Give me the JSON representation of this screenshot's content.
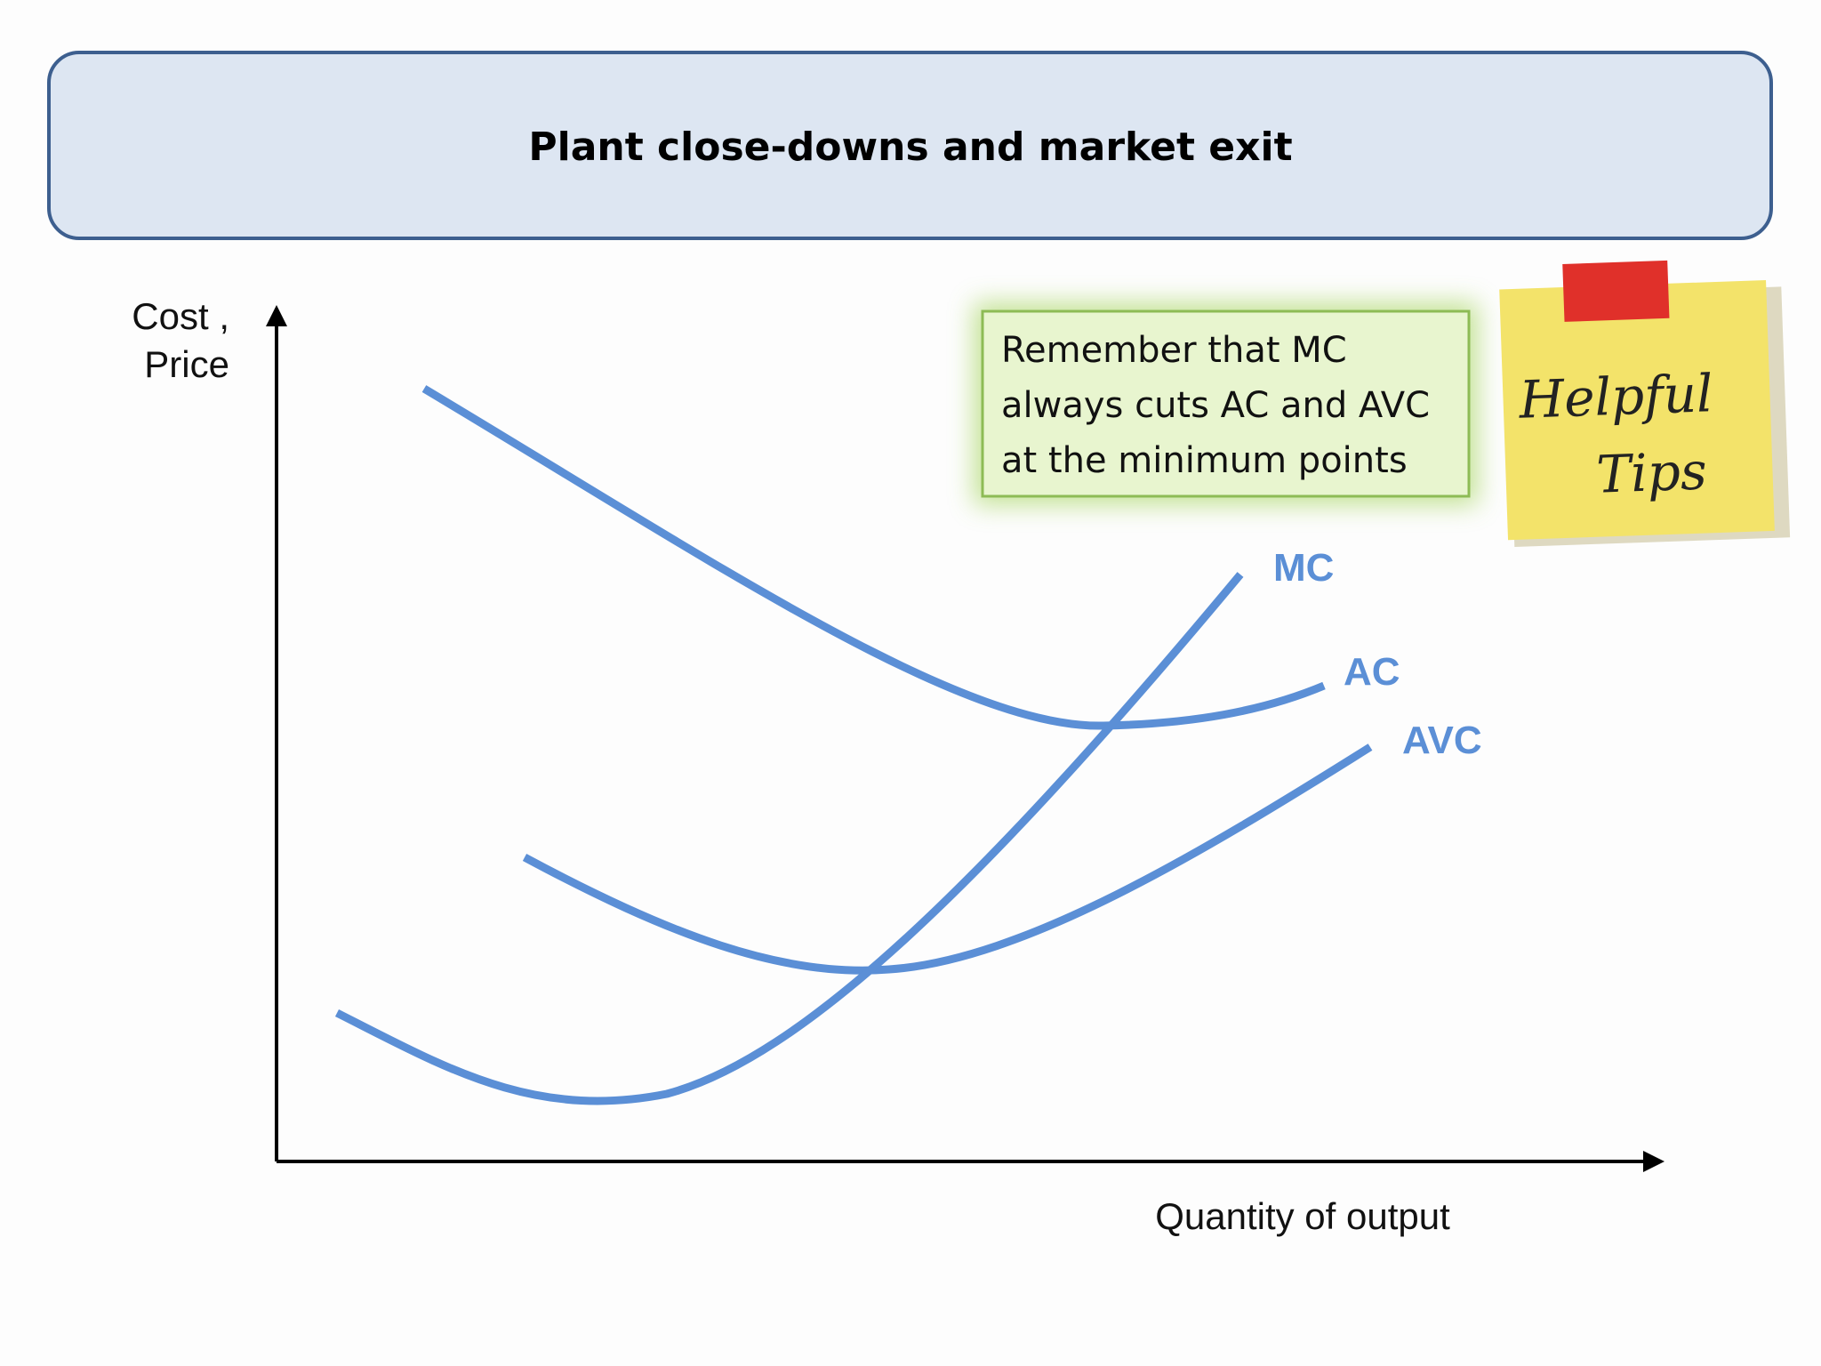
{
  "header": {
    "title": "Plant close-downs and market exit"
  },
  "axes": {
    "y_label_lines": [
      "Cost ,",
      "Price"
    ],
    "x_label": "Quantity of output"
  },
  "curves": {
    "mc": "MC",
    "ac": "AC",
    "avc": "AVC"
  },
  "tip_box": {
    "lines": [
      "Remember that MC",
      "always cuts AC and AVC",
      "at the minimum points"
    ]
  },
  "sticky_note": {
    "lines": [
      "Helpful",
      "Tips"
    ]
  }
}
